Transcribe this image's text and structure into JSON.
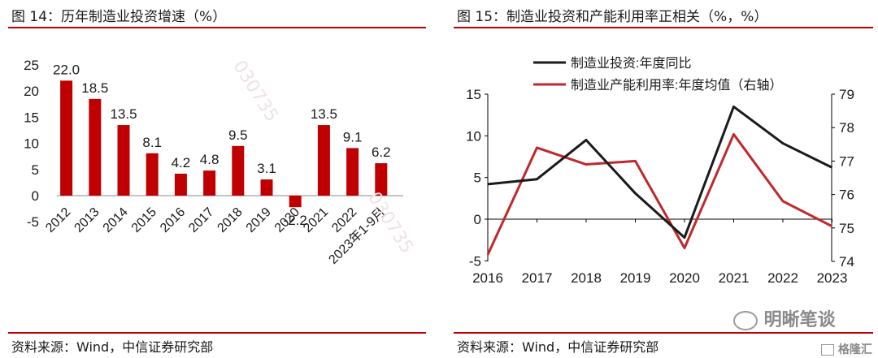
{
  "left": {
    "title": "图 14：历年制造业投资增速（%）",
    "source": "资料来源：Wind，中信证券研究部"
  },
  "right": {
    "title": "图 15：制造业投资和产能利用率正相关（%，%）",
    "source": "资料来源：Wind，中信证券研究部"
  },
  "watermark": {
    "brand_text": "明晰笔谈",
    "corner_text": "格隆汇",
    "stamp_text": "030735"
  },
  "colors": {
    "accent": "#c00000",
    "bar": "#c00000",
    "line1": "#1a1a1a",
    "line2": "#c0282d"
  },
  "chart_data": [
    {
      "type": "bar",
      "categories": [
        "2012",
        "2013",
        "2014",
        "2015",
        "2016",
        "2017",
        "2018",
        "2019",
        "2020",
        "2021",
        "2022",
        "2023年1-9月"
      ],
      "values": [
        22.0,
        18.5,
        13.5,
        8.1,
        4.2,
        4.8,
        9.5,
        3.1,
        -2.2,
        13.5,
        9.1,
        6.2
      ],
      "data_labels": [
        "22.0",
        "18.5",
        "13.5",
        "8.1",
        "4.2",
        "4.8",
        "9.5",
        "3.1",
        "-2.2",
        "13.5",
        "9.1",
        "6.2"
      ],
      "yticks": [
        "25",
        "20",
        "15",
        "10",
        "5",
        "0",
        "-5"
      ],
      "ylim": [
        -5,
        25
      ]
    },
    {
      "type": "line",
      "x": [
        "2016",
        "2017",
        "2018",
        "2019",
        "2020",
        "2021",
        "2022",
        "2023"
      ],
      "series": [
        {
          "name": "制造业投资:年度同比",
          "axis": "left",
          "values": [
            4.2,
            4.8,
            9.5,
            3.1,
            -2.2,
            13.5,
            9.1,
            6.2
          ]
        },
        {
          "name": "制造业产能利用率:年度均值（右轴）",
          "axis": "right",
          "values": [
            74.2,
            77.4,
            76.9,
            77.0,
            74.4,
            77.8,
            75.8,
            75.05
          ]
        }
      ],
      "yticks_left": [
        "15",
        "10",
        "5",
        "0",
        "-5"
      ],
      "yticks_right": [
        "79",
        "78",
        "77",
        "76",
        "75",
        "74"
      ],
      "ylim_left": [
        -5,
        15
      ],
      "ylim_right": [
        74,
        79
      ]
    }
  ]
}
